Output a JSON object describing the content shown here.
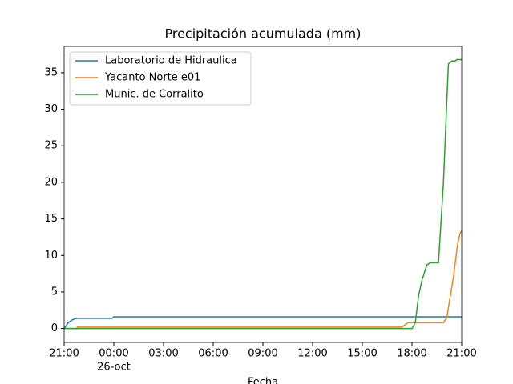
{
  "chart_data": {
    "type": "line",
    "title": "Precipitación acumulada (mm)",
    "x_label": "Fecha",
    "x_date_label": "26-oct",
    "xlim": [
      0,
      24
    ],
    "ylim": [
      -1.9,
      38.6
    ],
    "xticks": [
      {
        "value": 0,
        "label": "21:00"
      },
      {
        "value": 3,
        "label": "00:00"
      },
      {
        "value": 6,
        "label": "03:00"
      },
      {
        "value": 9,
        "label": "06:00"
      },
      {
        "value": 12,
        "label": "09:00"
      },
      {
        "value": 15,
        "label": "12:00"
      },
      {
        "value": 18,
        "label": "15:00"
      },
      {
        "value": 21,
        "label": "18:00"
      },
      {
        "value": 24,
        "label": "21:00"
      }
    ],
    "yticks": [
      0,
      5,
      10,
      15,
      20,
      25,
      30,
      35
    ],
    "legend": "upper left",
    "series": [
      {
        "name": "Laboratorio de Hidraulica",
        "color": "#1f77b4",
        "x": [
          0,
          0.25,
          0.5,
          0.75,
          2.9,
          3.0,
          24
        ],
        "values": [
          0,
          0.8,
          1.2,
          1.4,
          1.4,
          1.6,
          1.6
        ]
      },
      {
        "name": "Yacanto Norte e01",
        "color": "#ff7f0e",
        "x": [
          0,
          0.75,
          0.8,
          20.4,
          20.75,
          22.9,
          23.1,
          23.5,
          23.75,
          23.9,
          24
        ],
        "values": [
          0,
          0,
          0.2,
          0.2,
          0.8,
          0.8,
          1.5,
          7,
          11.5,
          13,
          13.4
        ]
      },
      {
        "name": "Munic. de Corralito",
        "color": "#2ca02c",
        "x": [
          0,
          21.0,
          21.2,
          21.4,
          21.6,
          21.9,
          22.1,
          22.6,
          22.9,
          23.1,
          23.2,
          23.4,
          23.6,
          23.7,
          24
        ],
        "values": [
          0,
          0,
          0.8,
          4.5,
          6.6,
          8.7,
          9,
          9,
          20,
          31,
          36.2,
          36.6,
          36.6,
          36.8,
          36.8
        ]
      }
    ]
  }
}
